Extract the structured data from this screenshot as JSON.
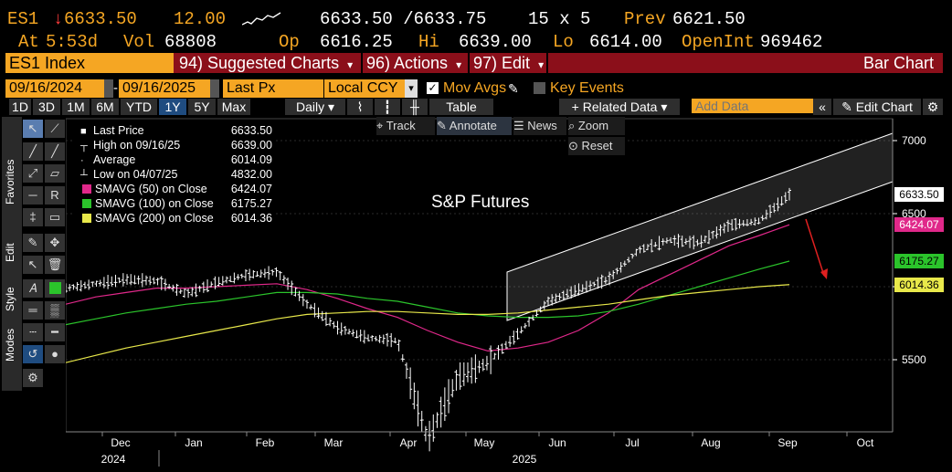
{
  "header": {
    "ticker": "ES1",
    "arrow": "↓",
    "last": "6633.50",
    "change": "12.00",
    "bid_ask": "6633.50 /6633.75",
    "size": "15 x 5",
    "prev_label": "Prev",
    "prev": "6621.50",
    "at_label": "At",
    "at_time": "5:53d",
    "vol_label": "Vol",
    "vol": "68808",
    "op_label": "Op",
    "op": "6616.25",
    "hi_label": "Hi",
    "hi": "6639.00",
    "lo_label": "Lo",
    "lo": "6614.00",
    "oi_label": "OpenInt",
    "oi": "969462"
  },
  "menu": {
    "security": "ES1 Index",
    "suggested_num": "94)",
    "suggested": "Suggested Charts",
    "actions_num": "96)",
    "actions": "Actions",
    "edit_num": "97)",
    "edit": "Edit",
    "bar_chart": "Bar Chart"
  },
  "controls": {
    "date_from": "09/16/2024",
    "date_to": "09/16/2025",
    "field": "Last Px",
    "ccy": "Local CCY",
    "mov_avgs": "Mov Avgs",
    "key_events": "Key Events",
    "related_data": "Related Data",
    "add_data_placeholder": "Add Data",
    "edit_chart": "Edit Chart",
    "table": "Table",
    "daily": "Daily"
  },
  "periods": [
    "1D",
    "3D",
    "1M",
    "6M",
    "YTD",
    "1Y",
    "5Y",
    "Max"
  ],
  "selected_period": "1Y",
  "tools": {
    "track": "Track",
    "annotate": "Annotate",
    "news": "News",
    "zoom": "Zoom",
    "reset": "Reset"
  },
  "side_tabs": [
    "Favorites",
    "Edit",
    "Style",
    "Modes"
  ],
  "legend": [
    {
      "label": "Last Price",
      "value": "6633.50",
      "color": "#ffffff"
    },
    {
      "label": "High on 09/16/25",
      "value": "6639.00",
      "color": "#ffffff"
    },
    {
      "label": "Average",
      "value": "6014.09",
      "color": "#ffffff"
    },
    {
      "label": "Low on 04/07/25",
      "value": "4832.00",
      "color": "#ffffff"
    },
    {
      "label": "SMAVG (50)  on Close",
      "value": "6424.07",
      "color": "#e0288a"
    },
    {
      "label": "SMAVG (100)  on Close",
      "value": "6175.27",
      "color": "#2bc42b"
    },
    {
      "label": "SMAVG (200)  on Close",
      "value": "6014.36",
      "color": "#e8e84a"
    }
  ],
  "chart_data": {
    "type": "line",
    "title": "S&P Futures",
    "x_ticks": [
      "Dec",
      "Jan",
      "Feb",
      "Mar",
      "Apr",
      "May",
      "Jun",
      "Jul",
      "Aug",
      "Sep",
      "Oct"
    ],
    "years": [
      "2024",
      "2025"
    ],
    "y_ticks": [
      7000,
      6500,
      6000,
      5500
    ],
    "ylim": [
      4830,
      7050
    ],
    "x": [
      "2024-11",
      "2024-11-15",
      "2024-12",
      "2024-12-15",
      "2025-01",
      "2025-01-15",
      "2025-02",
      "2025-02-15",
      "2025-03",
      "2025-03-10",
      "2025-03-20",
      "2025-04",
      "2025-04-07",
      "2025-04-15",
      "2025-04-25",
      "2025-05",
      "2025-05-15",
      "2025-06",
      "2025-06-15",
      "2025-07",
      "2025-07-15",
      "2025-08",
      "2025-08-15",
      "2025-09",
      "2025-09-16"
    ],
    "series": [
      {
        "name": "Last Price",
        "color": "#ffffff",
        "values": [
          5990,
          6020,
          6050,
          6040,
          5950,
          6030,
          6080,
          6100,
          5880,
          5720,
          5650,
          5630,
          4950,
          5380,
          5480,
          5680,
          5900,
          5980,
          6050,
          6250,
          6320,
          6300,
          6420,
          6450,
          6633
        ]
      },
      {
        "name": "SMAVG (50)",
        "color": "#e0288a",
        "values": [
          5880,
          5930,
          5960,
          5990,
          5990,
          6000,
          6010,
          6020,
          5980,
          5920,
          5850,
          5790,
          5700,
          5620,
          5560,
          5580,
          5620,
          5700,
          5820,
          5980,
          6080,
          6180,
          6280,
          6350,
          6424
        ]
      },
      {
        "name": "SMAVG (100)",
        "color": "#2bc42b",
        "values": [
          5740,
          5780,
          5820,
          5850,
          5880,
          5900,
          5930,
          5960,
          5960,
          5950,
          5920,
          5900,
          5860,
          5820,
          5800,
          5790,
          5790,
          5800,
          5830,
          5880,
          5940,
          6000,
          6060,
          6120,
          6175
        ]
      },
      {
        "name": "SMAVG (200)",
        "color": "#e8e84a",
        "values": [
          5480,
          5530,
          5580,
          5620,
          5660,
          5700,
          5740,
          5780,
          5810,
          5820,
          5830,
          5830,
          5820,
          5810,
          5810,
          5820,
          5840,
          5860,
          5880,
          5910,
          5940,
          5960,
          5980,
          6000,
          6014
        ]
      }
    ],
    "price_labels": [
      {
        "value": "6633.50",
        "y": 6633.5,
        "bg": "#ffffff",
        "fg": "#000000"
      },
      {
        "value": "6424.07",
        "y": 6424.07,
        "bg": "#e0288a",
        "fg": "#ffffff"
      },
      {
        "value": "6175.27",
        "y": 6175.27,
        "bg": "#2bc42b",
        "fg": "#000000"
      },
      {
        "value": "6014.36",
        "y": 6014.36,
        "bg": "#e8e84a",
        "fg": "#000000"
      }
    ],
    "grid": true
  }
}
